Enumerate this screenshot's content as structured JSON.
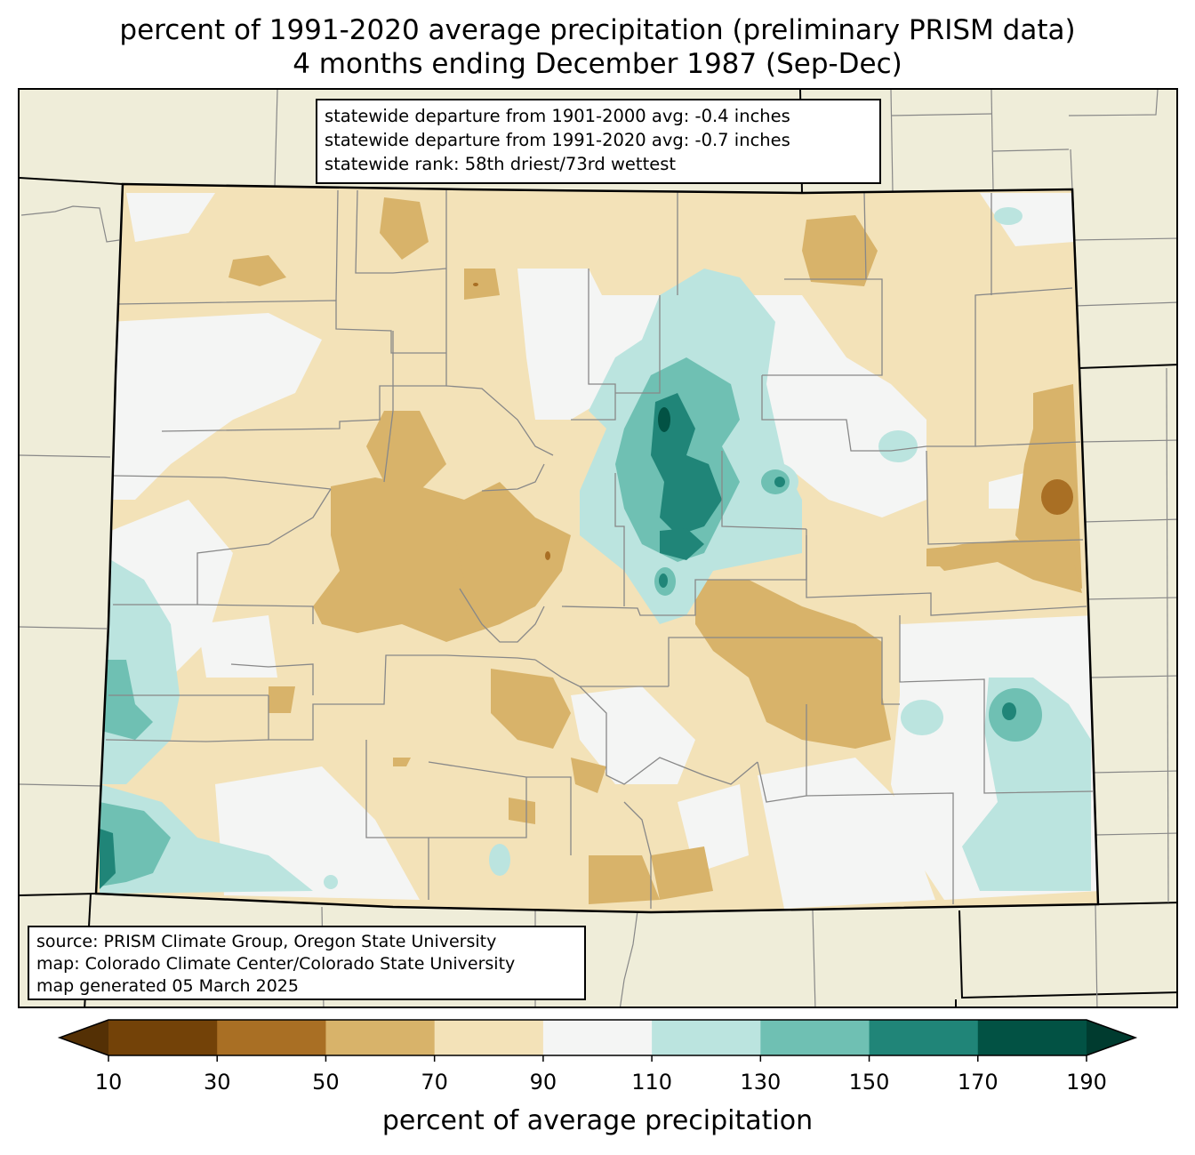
{
  "title": {
    "line1": "percent of 1991-2020 average precipitation (preliminary PRISM data)",
    "line2": "4 months ending December 1987 (Sep-Dec)"
  },
  "stats": {
    "line1": "statewide departure from 1901-2000 avg: -0.4 inches",
    "line2": "statewide departure from 1991-2020 avg: -0.7 inches",
    "line3": "statewide rank: 58th driest/73rd wettest"
  },
  "source": {
    "line1": "source: PRISM Climate Group, Oregon State University",
    "line2": "map: Colorado Climate Center/Colorado State University",
    "line3": "map generated 05 March 2025"
  },
  "colorbar": {
    "label": "percent of average precipitation",
    "ticks": [
      "10",
      "30",
      "50",
      "70",
      "90",
      "110",
      "130",
      "150",
      "170",
      "190"
    ],
    "bins": [
      {
        "range": "<10",
        "color": "#543005"
      },
      {
        "range": "10-30",
        "color": "#734208"
      },
      {
        "range": "30-50",
        "color": "#a96f24"
      },
      {
        "range": "50-70",
        "color": "#d8b36a"
      },
      {
        "range": "70-90",
        "color": "#f3e2b8"
      },
      {
        "range": "90-110",
        "color": "#f4f5f4"
      },
      {
        "range": "110-130",
        "color": "#bbe4df"
      },
      {
        "range": "130-150",
        "color": "#6fc0b3"
      },
      {
        "range": "150-170",
        "color": "#208578"
      },
      {
        "range": "170-190",
        "color": "#025244"
      },
      {
        "range": ">190",
        "color": "#003b2f"
      }
    ]
  },
  "colors": {
    "land_outside": "#efedd9",
    "county_lines": "#888888",
    "state_border": "#000000"
  }
}
